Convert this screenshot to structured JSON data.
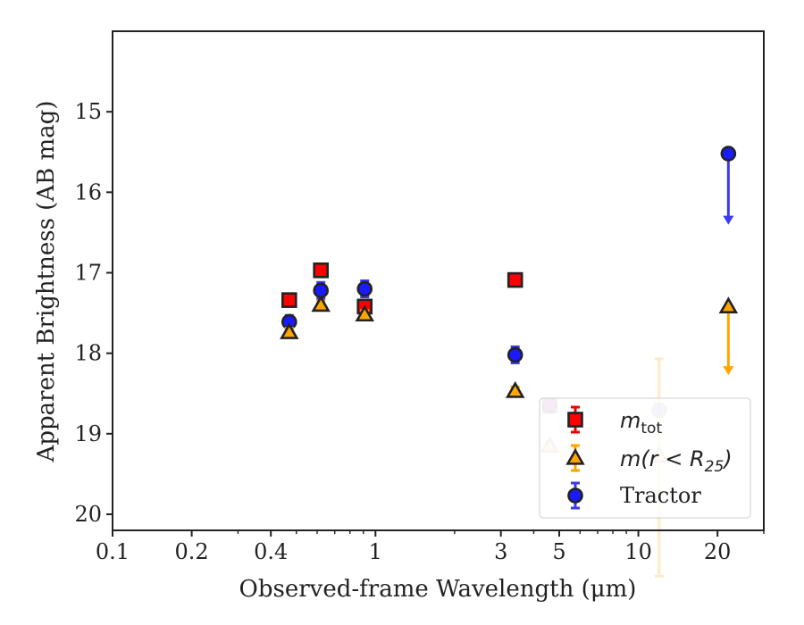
{
  "chart_data": {
    "type": "scatter",
    "xlabel": "Observed-frame Wavelength (μm)",
    "ylabel": "Apparent Brightness (AB mag)",
    "xscale": "log",
    "yaxis_inverted": true,
    "xlim": [
      0.1,
      30
    ],
    "ylim": [
      20.2,
      14.0
    ],
    "xticks": [
      {
        "v": 0.1,
        "label": "0.1"
      },
      {
        "v": 0.2,
        "label": "0.2"
      },
      {
        "v": 0.4,
        "label": "0.4"
      },
      {
        "v": 1,
        "label": "1"
      },
      {
        "v": 3,
        "label": "3"
      },
      {
        "v": 5,
        "label": "5"
      },
      {
        "v": 10,
        "label": "10"
      },
      {
        "v": 20,
        "label": "20"
      }
    ],
    "yticks": [
      {
        "v": 15,
        "label": "15"
      },
      {
        "v": 16,
        "label": "16"
      },
      {
        "v": 17,
        "label": "17"
      },
      {
        "v": 18,
        "label": "18"
      },
      {
        "v": 19,
        "label": "19"
      },
      {
        "v": 20,
        "label": "20"
      }
    ],
    "grid": false,
    "legend_position": "lower-right",
    "series": [
      {
        "name": "m_tot",
        "legend_main": "m",
        "legend_sub": "tot",
        "legend_rest": "",
        "marker": "square",
        "face": "#ff0000",
        "edge": "#222222",
        "err": "#ee0000",
        "points": [
          {
            "x": 0.47,
            "y": 17.34,
            "err": 0.06
          },
          {
            "x": 0.62,
            "y": 16.97,
            "err": 0.06
          },
          {
            "x": 0.91,
            "y": 17.42,
            "err": 0.06
          },
          {
            "x": 3.4,
            "y": 17.09,
            "err": 0.06
          },
          {
            "x": 4.6,
            "y": 18.65,
            "err": 0.08,
            "faded": true
          }
        ]
      },
      {
        "name": "m(r < R25)",
        "legend_main": "m(r < R",
        "legend_sub": "25",
        "legend_rest": ")",
        "marker": "triangle",
        "face": "#ffa500",
        "edge": "#222222",
        "err": "#ffa500",
        "points": [
          {
            "x": 0.47,
            "y": 17.74,
            "err": 0.05
          },
          {
            "x": 0.62,
            "y": 17.4,
            "err": 0.05
          },
          {
            "x": 0.91,
            "y": 17.52,
            "err": 0.05
          },
          {
            "x": 3.4,
            "y": 18.47,
            "err": 0.05
          },
          {
            "x": 4.6,
            "y": 19.15,
            "err": 0.06,
            "faded": true
          },
          {
            "x": 12.0,
            "y": 19.27,
            "err_low": 1.2,
            "err_high": 1.5,
            "faded": true
          },
          {
            "x": 22.0,
            "y": 17.42,
            "upper_limit_to": 18.25
          }
        ]
      },
      {
        "name": "Tractor",
        "legend_main": "Tractor",
        "legend_sub": "",
        "legend_rest": "",
        "marker": "circle",
        "face": "#1a1aff",
        "edge": "#222222",
        "err": "#3a3aee",
        "points": [
          {
            "x": 0.47,
            "y": 17.61,
            "err": 0.08
          },
          {
            "x": 0.62,
            "y": 17.22,
            "err": 0.1
          },
          {
            "x": 0.91,
            "y": 17.2,
            "err": 0.1
          },
          {
            "x": 3.4,
            "y": 18.02,
            "err": 0.1
          },
          {
            "x": 4.6,
            "y": 18.65,
            "err": 0.08,
            "faded": true
          },
          {
            "x": 12.0,
            "y": 18.71,
            "err": 0.08,
            "faded": true
          },
          {
            "x": 22.0,
            "y": 15.52,
            "upper_limit_to": 16.38
          }
        ]
      }
    ]
  }
}
